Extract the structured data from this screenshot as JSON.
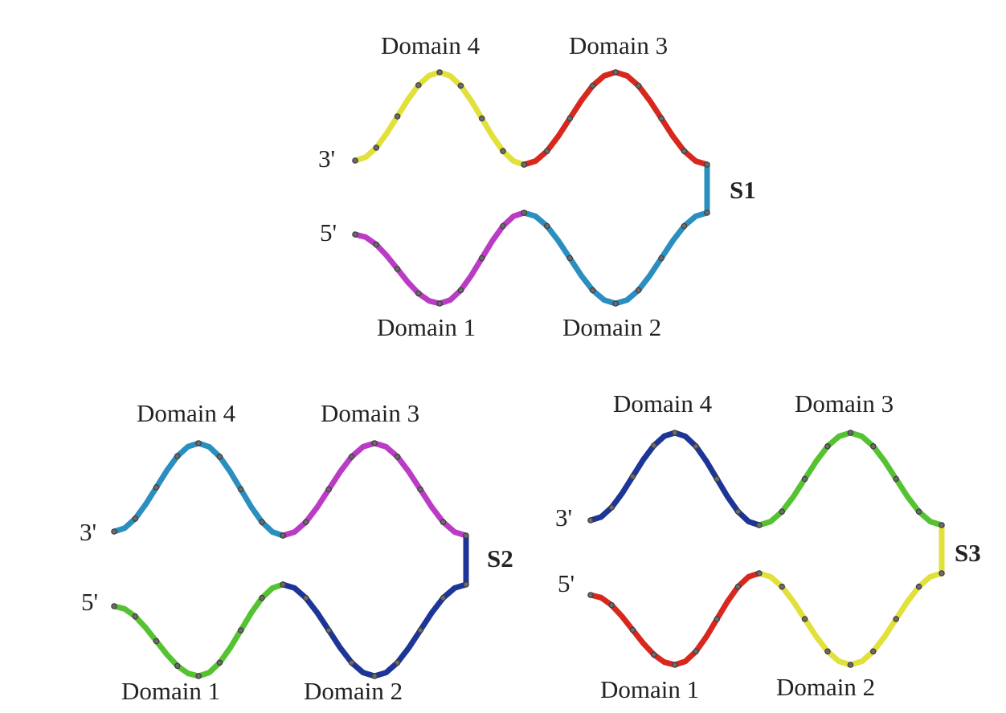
{
  "palette": {
    "yellow": "#e2e03a",
    "red": "#d8281e",
    "magenta": "#bb3cc4",
    "cyan": "#2a8fbf",
    "green": "#55c232",
    "navy": "#1d3597"
  },
  "structures": [
    {
      "id": "s1",
      "name": "S1",
      "end_3": "3'",
      "end_5": "5'",
      "domain_labels": [
        "Domain 4",
        "Domain 3",
        "Domain 1",
        "Domain 2"
      ],
      "colors": {
        "domain4": "yellow",
        "domain3": "red",
        "domain1": "magenta",
        "domain2": "cyan",
        "linker": "cyan"
      }
    },
    {
      "id": "s2",
      "name": "S2",
      "end_3": "3'",
      "end_5": "5'",
      "domain_labels": [
        "Domain 4",
        "Domain 3",
        "Domain 1",
        "Domain 2"
      ],
      "colors": {
        "domain4": "cyan",
        "domain3": "magenta",
        "domain1": "green",
        "domain2": "navy",
        "linker": "navy"
      }
    },
    {
      "id": "s3",
      "name": "S3",
      "end_3": "3'",
      "end_5": "5'",
      "domain_labels": [
        "Domain 4",
        "Domain 3",
        "Domain 1",
        "Domain 2"
      ],
      "colors": {
        "domain4": "navy",
        "domain3": "green",
        "domain1": "red",
        "domain2": "yellow",
        "linker": "yellow"
      }
    }
  ]
}
